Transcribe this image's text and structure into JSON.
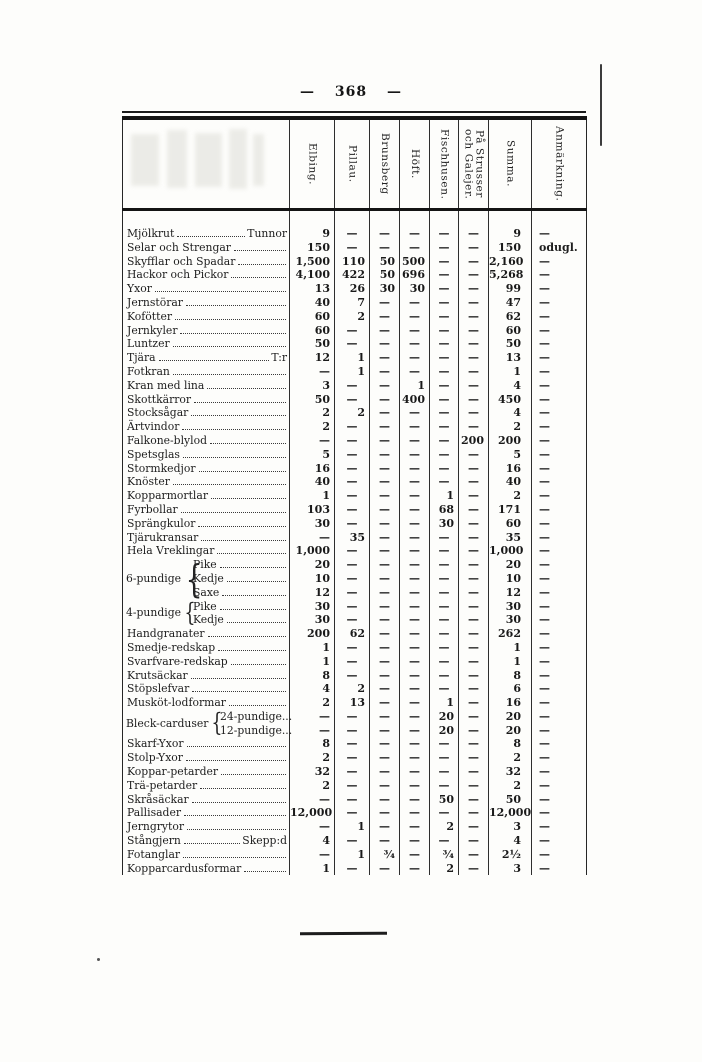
{
  "page": {
    "number": "368",
    "number_display": "— 368 —"
  },
  "table": {
    "columns": [
      {
        "id": "elbing",
        "label": "Elbing."
      },
      {
        "id": "pillau",
        "label": "Pillau."
      },
      {
        "id": "brunsberg",
        "label": "Brunsberg"
      },
      {
        "id": "hoft",
        "label": "Höft."
      },
      {
        "id": "fischhusen",
        "label": "Fischhusen."
      },
      {
        "id": "galejer",
        "label": "På Strusser\noch Galejer."
      },
      {
        "id": "summa",
        "label": "Summa."
      },
      {
        "id": "anmarkning",
        "label": "Anmärkning."
      }
    ],
    "rows": [
      {
        "label": "Mjölkrut",
        "unit": "Tunnor",
        "cells": [
          "9",
          "—",
          "—",
          "—",
          "—",
          "—",
          "9",
          "—"
        ]
      },
      {
        "label": "Selar och Strengar",
        "cells": [
          "150",
          "—",
          "—",
          "—",
          "—",
          "—",
          "150",
          "odugl."
        ]
      },
      {
        "label": "Skyfflar och Spadar",
        "cells": [
          "1,500",
          "110",
          "50",
          "500",
          "—",
          "—",
          "2,160",
          "—"
        ]
      },
      {
        "label": "Hackor och Pickor",
        "cells": [
          "4,100",
          "422",
          "50",
          "696",
          "—",
          "—",
          "5,268",
          "—"
        ]
      },
      {
        "label": "Yxor",
        "cells": [
          "13",
          "26",
          "30",
          "30",
          "—",
          "—",
          "99",
          "—"
        ]
      },
      {
        "label": "Jernstörar",
        "cells": [
          "40",
          "7",
          "—",
          "—",
          "—",
          "—",
          "47",
          "—"
        ]
      },
      {
        "label": "Kofötter",
        "cells": [
          "60",
          "2",
          "—",
          "—",
          "—",
          "—",
          "62",
          "—"
        ]
      },
      {
        "label": "Jernkyler",
        "cells": [
          "60",
          "—",
          "—",
          "—",
          "—",
          "—",
          "60",
          "—"
        ]
      },
      {
        "label": "Luntzer",
        "cells": [
          "50",
          "—",
          "—",
          "—",
          "—",
          "—",
          "50",
          "—"
        ]
      },
      {
        "label": "Tjära",
        "unit": "T:r",
        "cells": [
          "12",
          "1",
          "—",
          "—",
          "—",
          "—",
          "13",
          "—"
        ]
      },
      {
        "label": "Fotkran",
        "cells": [
          "—",
          "1",
          "—",
          "—",
          "—",
          "—",
          "1",
          "—"
        ]
      },
      {
        "label": "Kran med lina",
        "cells": [
          "3",
          "—",
          "—",
          "1",
          "—",
          "—",
          "4",
          "—"
        ]
      },
      {
        "label": "Skottkärror",
        "cells": [
          "50",
          "—",
          "—",
          "400",
          "—",
          "—",
          "450",
          "—"
        ]
      },
      {
        "label": "Stocksågar",
        "cells": [
          "2",
          "2",
          "—",
          "—",
          "—",
          "—",
          "4",
          "—"
        ]
      },
      {
        "label": "Ärtvindor",
        "cells": [
          "2",
          "—",
          "—",
          "—",
          "—",
          "—",
          "2",
          "—"
        ]
      },
      {
        "label": "Falkone-blylod",
        "cells": [
          "—",
          "—",
          "—",
          "—",
          "—",
          "200",
          "200",
          "—"
        ]
      },
      {
        "label": "Spetsglas",
        "cells": [
          "5",
          "—",
          "—",
          "—",
          "—",
          "—",
          "5",
          "—"
        ]
      },
      {
        "label": "Stormkedjor",
        "cells": [
          "16",
          "—",
          "—",
          "—",
          "—",
          "—",
          "16",
          "—"
        ]
      },
      {
        "label": "Knöster",
        "cells": [
          "40",
          "—",
          "—",
          "—",
          "—",
          "—",
          "40",
          "—"
        ]
      },
      {
        "label": "Kopparmortlar",
        "cells": [
          "1",
          "—",
          "—",
          "—",
          "1",
          "—",
          "2",
          "—"
        ]
      },
      {
        "label": "Fyrbollar",
        "cells": [
          "103",
          "—",
          "—",
          "—",
          "68",
          "—",
          "171",
          "—"
        ]
      },
      {
        "label": "Sprängkulor",
        "cells": [
          "30",
          "—",
          "—",
          "—",
          "30",
          "—",
          "60",
          "—"
        ]
      },
      {
        "label": "Tjärukransar",
        "cells": [
          "—",
          "35",
          "—",
          "—",
          "—",
          "—",
          "35",
          "—"
        ]
      },
      {
        "label": "Hela Vreklingar",
        "cells": [
          "1,000",
          "—",
          "—",
          "—",
          "—",
          "—",
          "1,000",
          "—"
        ]
      },
      {
        "label": "Pike",
        "indent": "pundige",
        "group": {
          "label": "6-pundige",
          "span": 3
        },
        "cells": [
          "20",
          "—",
          "—",
          "—",
          "—",
          "—",
          "20",
          "—"
        ]
      },
      {
        "label": "Kedje",
        "indent": "pundige",
        "cells": [
          "10",
          "—",
          "—",
          "—",
          "—",
          "—",
          "10",
          "—"
        ]
      },
      {
        "label": "Saxe",
        "indent": "pundige",
        "cells": [
          "12",
          "—",
          "—",
          "—",
          "—",
          "—",
          "12",
          "—"
        ]
      },
      {
        "label": "Pike",
        "indent": "pundige",
        "group": {
          "label": "4-pundige",
          "span": 2
        },
        "cells": [
          "30",
          "—",
          "—",
          "—",
          "—",
          "—",
          "30",
          "—"
        ]
      },
      {
        "label": "Kedje",
        "indent": "pundige",
        "cells": [
          "30",
          "—",
          "—",
          "—",
          "—",
          "—",
          "30",
          "—"
        ]
      },
      {
        "label": "Handgranater",
        "cells": [
          "200",
          "62",
          "—",
          "—",
          "—",
          "—",
          "262",
          "—"
        ]
      },
      {
        "label": "Smedje-redskap",
        "cells": [
          "1",
          "—",
          "—",
          "—",
          "—",
          "—",
          "1",
          "—"
        ]
      },
      {
        "label": "Svarfvare-redskap",
        "cells": [
          "1",
          "—",
          "—",
          "—",
          "—",
          "—",
          "1",
          "—"
        ]
      },
      {
        "label": "Krutsäckar",
        "cells": [
          "8",
          "—",
          "—",
          "—",
          "—",
          "—",
          "8",
          "—"
        ]
      },
      {
        "label": "Stöpslefvar",
        "cells": [
          "4",
          "2",
          "—",
          "—",
          "—",
          "—",
          "6",
          "—"
        ]
      },
      {
        "label": "Musköt-lodformar",
        "cells": [
          "2",
          "13",
          "—",
          "—",
          "1",
          "—",
          "16",
          "—"
        ]
      },
      {
        "label": "24-pundige...",
        "leader": false,
        "indent": "bleck",
        "group": {
          "label": "Bleck-carduser",
          "span": 2
        },
        "cells": [
          "—",
          "—",
          "—",
          "—",
          "20",
          "—",
          "20",
          "—"
        ]
      },
      {
        "label": "12-pundige...",
        "leader": false,
        "indent": "bleck",
        "cells": [
          "—",
          "—",
          "—",
          "—",
          "20",
          "—",
          "20",
          "—"
        ]
      },
      {
        "label": "Skarf-Yxor",
        "cells": [
          "8",
          "—",
          "—",
          "—",
          "—",
          "—",
          "8",
          "—"
        ]
      },
      {
        "label": "Stolp-Yxor",
        "cells": [
          "2",
          "—",
          "—",
          "—",
          "—",
          "—",
          "2",
          "—"
        ]
      },
      {
        "label": "Koppar-petarder",
        "cells": [
          "32",
          "—",
          "—",
          "—",
          "—",
          "—",
          "32",
          "—"
        ]
      },
      {
        "label": "Trä-petarder",
        "cells": [
          "2",
          "—",
          "—",
          "—",
          "—",
          "—",
          "2",
          "—"
        ]
      },
      {
        "label": "Skråsäckar",
        "cells": [
          "—",
          "—",
          "—",
          "—",
          "50",
          "—",
          "50",
          "—"
        ]
      },
      {
        "label": "Pallisader",
        "cells": [
          "12,000",
          "—",
          "—",
          "—",
          "—",
          "—",
          "12,000",
          "—"
        ]
      },
      {
        "label": "Jerngrytor",
        "cells": [
          "—",
          "1",
          "—",
          "—",
          "2",
          "—",
          "3",
          "—"
        ]
      },
      {
        "label": "Stångjern",
        "unit": "Skepp:d",
        "cells": [
          "4",
          "—",
          "—",
          "—",
          "—",
          "—",
          "4",
          "—"
        ]
      },
      {
        "label": "Fotanglar",
        "cells": [
          "—",
          "1",
          "¾",
          "—",
          "¾",
          "—",
          "2½",
          "—"
        ]
      },
      {
        "label": "Kopparcardusformar",
        "cells": [
          "1",
          "—",
          "—",
          "—",
          "2",
          "—",
          "3",
          "—"
        ]
      }
    ]
  }
}
